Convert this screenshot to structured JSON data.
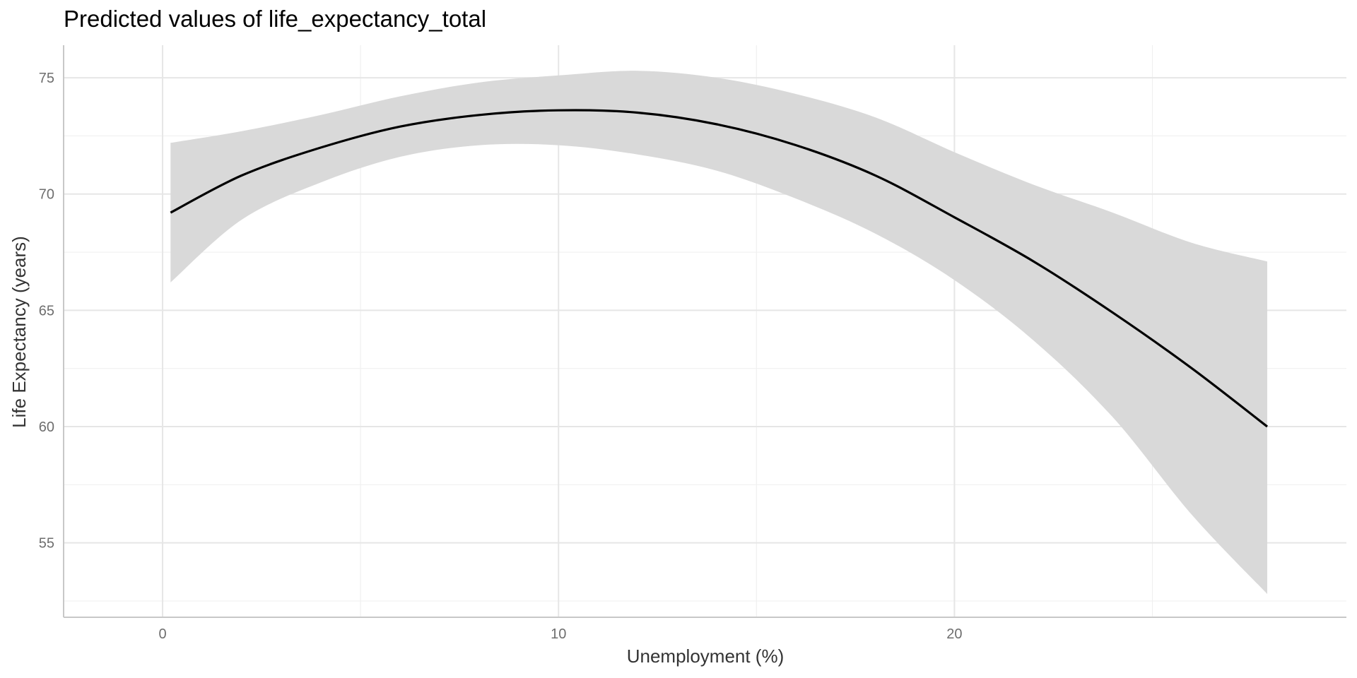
{
  "chart_data": {
    "type": "line",
    "title": "Predicted values of life_expectancy_total",
    "xlabel": "Unemployment (%)",
    "ylabel": "Life Expectancy (years)",
    "xlim": [
      -2.5,
      29.9
    ],
    "ylim": [
      51.8,
      76.4
    ],
    "x_ticks": [
      0,
      10,
      20
    ],
    "x_tick_labels": [
      "0",
      "10",
      "20"
    ],
    "x_minor_ticks": [
      5,
      15,
      25
    ],
    "y_ticks": [
      55,
      60,
      65,
      70,
      75
    ],
    "y_tick_labels": [
      "55",
      "60",
      "65",
      "70",
      "75"
    ],
    "y_minor_ticks": [
      52.5,
      57.5,
      62.5,
      67.5,
      72.5
    ],
    "grid": true,
    "series": [
      {
        "x": [
          0.2,
          2,
          4,
          6,
          8,
          10,
          12,
          14,
          16,
          18,
          20,
          22,
          24,
          26,
          27.9
        ],
        "y": [
          69.2,
          70.8,
          72.0,
          72.9,
          73.4,
          73.6,
          73.5,
          73.0,
          72.1,
          70.8,
          69.0,
          67.1,
          64.9,
          62.5,
          60.0
        ],
        "lower": [
          66.2,
          68.9,
          70.5,
          71.6,
          72.1,
          72.1,
          71.7,
          71.0,
          69.8,
          68.3,
          66.3,
          63.7,
          60.4,
          56.2,
          52.8
        ],
        "upper": [
          72.2,
          72.7,
          73.4,
          74.2,
          74.8,
          75.1,
          75.3,
          75.0,
          74.3,
          73.3,
          71.8,
          70.4,
          69.2,
          67.9,
          67.1
        ]
      }
    ],
    "colors": {
      "line": "#000000",
      "ribbon": "#d9d9d9",
      "grid_major": "#e6e6e6",
      "grid_minor": "#f0f0f0",
      "axis": "#c8c8c8"
    }
  }
}
